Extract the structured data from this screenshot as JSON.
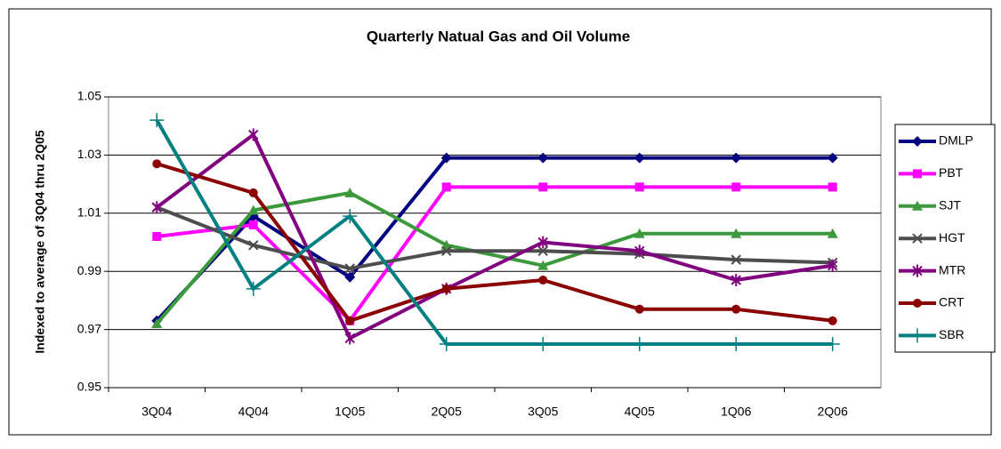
{
  "chart_data": {
    "type": "line",
    "title": "Quarterly Natual Gas and Oil Volume",
    "y_label": "Indexed to average of 3Q04 thru 2Q05",
    "categories": [
      "3Q04",
      "4Q04",
      "1Q05",
      "2Q05",
      "3Q05",
      "4Q05",
      "1Q06",
      "2Q06"
    ],
    "ylim": [
      0.95,
      1.05
    ],
    "yticks": [
      0.95,
      0.97,
      0.99,
      1.01,
      1.03,
      1.05
    ],
    "grid": true,
    "legend": "right",
    "series": [
      {
        "name": "DMLP",
        "color": "#000080",
        "marker": "diamond",
        "values": [
          0.973,
          1.009,
          0.988,
          1.029,
          1.029,
          1.029,
          1.029,
          1.029
        ]
      },
      {
        "name": "PBT",
        "color": "#ff00ff",
        "marker": "square",
        "values": [
          1.002,
          1.006,
          0.973,
          1.019,
          1.019,
          1.019,
          1.019,
          1.019
        ]
      },
      {
        "name": "SJT",
        "color": "#3c9a3c",
        "marker": "triangle",
        "values": [
          0.972,
          1.011,
          1.017,
          0.999,
          0.992,
          1.003,
          1.003,
          1.003
        ]
      },
      {
        "name": "HGT",
        "color": "#4d4d4d",
        "marker": "x",
        "values": [
          1.012,
          0.999,
          0.991,
          0.997,
          0.997,
          0.996,
          0.994,
          0.993
        ]
      },
      {
        "name": "MTR",
        "color": "#800080",
        "marker": "star",
        "values": [
          1.012,
          1.037,
          0.967,
          0.984,
          1.0,
          0.997,
          0.987,
          0.992
        ]
      },
      {
        "name": "CRT",
        "color": "#8b0000",
        "marker": "circle",
        "values": [
          1.027,
          1.017,
          0.973,
          0.984,
          0.987,
          0.977,
          0.977,
          0.973
        ]
      },
      {
        "name": "SBR",
        "color": "#008080",
        "marker": "plus",
        "values": [
          1.042,
          0.984,
          1.009,
          0.965,
          0.965,
          0.965,
          0.965,
          0.965
        ]
      }
    ]
  }
}
